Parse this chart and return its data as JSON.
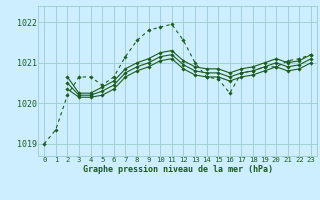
{
  "bg_color": "#cceeff",
  "grid_color": "#99cccc",
  "line_color": "#1a5c1a",
  "title": "Graphe pression niveau de la mer (hPa)",
  "ylim": [
    1018.7,
    1022.4
  ],
  "yticks": [
    1019,
    1020,
    1021,
    1022
  ],
  "xlim": [
    -0.5,
    23.5
  ],
  "xticks": [
    0,
    1,
    2,
    3,
    4,
    5,
    6,
    7,
    8,
    9,
    10,
    11,
    12,
    13,
    14,
    15,
    16,
    17,
    18,
    19,
    20,
    21,
    22,
    23
  ],
  "series": [
    {
      "x": [
        0,
        1,
        2,
        3,
        4,
        5,
        6,
        7,
        8,
        9,
        10,
        11,
        12,
        13,
        14,
        15,
        16,
        17,
        18,
        19,
        20,
        21,
        22,
        23
      ],
      "y": [
        1019.0,
        1019.35,
        1020.2,
        1020.65,
        1020.65,
        1020.45,
        1020.65,
        1021.15,
        1021.55,
        1021.8,
        1021.88,
        1021.95,
        1021.55,
        1021.0,
        1020.65,
        1020.6,
        1020.25,
        1020.75,
        1020.8,
        1020.9,
        1020.9,
        1021.05,
        1021.1,
        1021.2
      ],
      "style": "dotted"
    },
    {
      "x": [
        2,
        3,
        4,
        5,
        6,
        7,
        8,
        9,
        10,
        11,
        12,
        13,
        14,
        15,
        16,
        17,
        18,
        19,
        20,
        21,
        22,
        23
      ],
      "y": [
        1020.65,
        1020.25,
        1020.25,
        1020.4,
        1020.55,
        1020.85,
        1021.0,
        1021.1,
        1021.25,
        1021.3,
        1021.05,
        1020.9,
        1020.85,
        1020.85,
        1020.75,
        1020.85,
        1020.9,
        1021.0,
        1021.1,
        1021.0,
        1021.05,
        1021.2
      ],
      "style": "solid"
    },
    {
      "x": [
        2,
        3,
        4,
        5,
        6,
        7,
        8,
        9,
        10,
        11,
        12,
        13,
        14,
        15,
        16,
        17,
        18,
        19,
        20,
        21,
        22,
        23
      ],
      "y": [
        1020.5,
        1020.2,
        1020.2,
        1020.3,
        1020.45,
        1020.75,
        1020.9,
        1021.0,
        1021.15,
        1021.2,
        1020.95,
        1020.8,
        1020.75,
        1020.75,
        1020.65,
        1020.75,
        1020.8,
        1020.9,
        1021.0,
        1020.9,
        1020.95,
        1021.1
      ],
      "style": "solid"
    },
    {
      "x": [
        2,
        3,
        4,
        5,
        6,
        7,
        8,
        9,
        10,
        11,
        12,
        13,
        14,
        15,
        16,
        17,
        18,
        19,
        20,
        21,
        22,
        23
      ],
      "y": [
        1020.35,
        1020.15,
        1020.15,
        1020.2,
        1020.35,
        1020.65,
        1020.8,
        1020.9,
        1021.05,
        1021.1,
        1020.85,
        1020.7,
        1020.65,
        1020.65,
        1020.55,
        1020.65,
        1020.7,
        1020.8,
        1020.9,
        1020.8,
        1020.85,
        1021.0
      ],
      "style": "solid"
    }
  ]
}
